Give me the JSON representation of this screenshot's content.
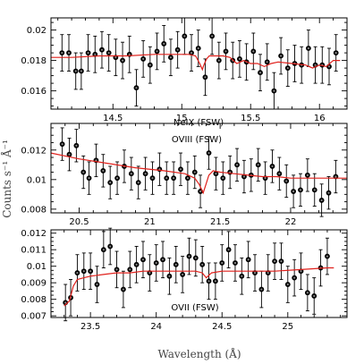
{
  "chart_data": [
    {
      "type": "scatter",
      "title": "",
      "annotation": "NeIX (FSW)",
      "xlim": [
        14.05,
        16.2
      ],
      "ylim": [
        0.0148,
        0.0208
      ],
      "xticks": [
        14.5,
        15,
        15.5,
        16
      ],
      "xtick_labels": [
        "14.5",
        "15",
        "15.5",
        "16"
      ],
      "yticks": [
        0.016,
        0.018,
        0.02
      ],
      "ytick_labels": [
        "0.016",
        "0.018",
        "0.02"
      ],
      "series": [
        {
          "kind": "data",
          "x": [
            14.13,
            14.18,
            14.23,
            14.27,
            14.32,
            14.37,
            14.42,
            14.47,
            14.52,
            14.57,
            14.62,
            14.67,
            14.72,
            14.77,
            14.82,
            14.87,
            14.92,
            14.97,
            15.02,
            15.07,
            15.12,
            15.17,
            15.22,
            15.27,
            15.32,
            15.37,
            15.42,
            15.47,
            15.52,
            15.57,
            15.62,
            15.67,
            15.72,
            15.77,
            15.82,
            15.87,
            15.92,
            15.97,
            16.02,
            16.07,
            16.12
          ],
          "y": [
            0.0185,
            0.0185,
            0.0173,
            0.0173,
            0.0185,
            0.0184,
            0.0187,
            0.0185,
            0.0182,
            0.018,
            0.0184,
            0.0162,
            0.0181,
            0.0177,
            0.0186,
            0.0191,
            0.0182,
            0.0187,
            0.0196,
            0.0185,
            0.0188,
            0.0169,
            0.0196,
            0.018,
            0.0186,
            0.018,
            0.0181,
            0.0179,
            0.0186,
            0.0172,
            0.0179,
            0.016,
            0.0183,
            0.0175,
            0.0178,
            0.0177,
            0.0188,
            0.0177,
            0.0177,
            0.0176,
            0.0185
          ],
          "err": [
            0.0012,
            0.0012,
            0.0012,
            0.0012,
            0.0012,
            0.0012,
            0.0012,
            0.0012,
            0.0012,
            0.0012,
            0.0012,
            0.0012,
            0.0012,
            0.0012,
            0.0012,
            0.0012,
            0.0012,
            0.0012,
            0.0012,
            0.0012,
            0.0012,
            0.0012,
            0.0012,
            0.0012,
            0.0012,
            0.0012,
            0.0012,
            0.0012,
            0.0012,
            0.0012,
            0.0012,
            0.0012,
            0.0012,
            0.0012,
            0.0012,
            0.0012,
            0.0012,
            0.0012,
            0.0012,
            0.0012,
            0.0012
          ]
        },
        {
          "kind": "model",
          "color": "#e0201b",
          "x": [
            14.05,
            14.2,
            14.4,
            14.6,
            14.8,
            15.0,
            15.05,
            15.1,
            15.13,
            15.15,
            15.16,
            15.18,
            15.2,
            15.25,
            15.3,
            15.35,
            15.4,
            15.45,
            15.5,
            15.55,
            15.6,
            15.65,
            15.7,
            15.8,
            15.9,
            15.95,
            16.0,
            16.05,
            16.1,
            16.15
          ],
          "y": [
            0.0182,
            0.0182,
            0.0183,
            0.0183,
            0.0184,
            0.0184,
            0.0184,
            0.0183,
            0.0178,
            0.0174,
            0.0177,
            0.0181,
            0.0183,
            0.0183,
            0.0183,
            0.0182,
            0.0178,
            0.018,
            0.0178,
            0.0178,
            0.0176,
            0.0178,
            0.0179,
            0.0178,
            0.0177,
            0.0175,
            0.0177,
            0.0176,
            0.018,
            0.018
          ]
        }
      ]
    },
    {
      "type": "scatter",
      "title": "",
      "annotation": "OVIII (FSW)",
      "xlim": [
        20.3,
        22.4
      ],
      "ylim": [
        0.00775,
        0.0138
      ],
      "xticks": [
        20.5,
        21,
        21.5,
        22
      ],
      "xtick_labels": [
        "20.5",
        "21",
        "21.5",
        "22"
      ],
      "yticks": [
        0.008,
        0.01,
        0.012
      ],
      "ytick_labels": [
        "0.008",
        "0.01",
        "0.012"
      ],
      "series": [
        {
          "kind": "data",
          "x": [
            20.38,
            20.43,
            20.48,
            20.53,
            20.57,
            20.62,
            20.67,
            20.72,
            20.77,
            20.82,
            20.87,
            20.92,
            20.97,
            21.02,
            21.07,
            21.12,
            21.17,
            21.22,
            21.27,
            21.32,
            21.36,
            21.42,
            21.47,
            21.52,
            21.57,
            21.62,
            21.67,
            21.72,
            21.77,
            21.82,
            21.87,
            21.92,
            21.97,
            22.02,
            22.07,
            22.12,
            22.17,
            22.22,
            22.27,
            22.32
          ],
          "y": [
            0.0124,
            0.0117,
            0.0123,
            0.0105,
            0.0101,
            0.0113,
            0.0106,
            0.0098,
            0.0101,
            0.0109,
            0.0104,
            0.0098,
            0.0104,
            0.0101,
            0.0107,
            0.0101,
            0.0101,
            0.0107,
            0.0101,
            0.0105,
            0.0092,
            0.0118,
            0.0104,
            0.0101,
            0.0105,
            0.011,
            0.0102,
            0.0103,
            0.011,
            0.0101,
            0.0109,
            0.0104,
            0.0099,
            0.0092,
            0.0093,
            0.0103,
            0.0093,
            0.0086,
            0.0091,
            0.0102
          ],
          "err": [
            0.0011,
            0.0011,
            0.0011,
            0.0011,
            0.0011,
            0.0011,
            0.0011,
            0.0011,
            0.0011,
            0.0011,
            0.0011,
            0.0011,
            0.0011,
            0.0011,
            0.0011,
            0.0011,
            0.0011,
            0.0011,
            0.0011,
            0.0011,
            0.0011,
            0.0011,
            0.0011,
            0.0011,
            0.0011,
            0.0011,
            0.0011,
            0.0011,
            0.0011,
            0.0011,
            0.0011,
            0.0011,
            0.0011,
            0.0011,
            0.0011,
            0.0011,
            0.0011,
            0.0011,
            0.0011,
            0.0011
          ]
        },
        {
          "kind": "model",
          "color": "#e0201b",
          "x": [
            20.3,
            20.5,
            20.7,
            20.9,
            21.1,
            21.25,
            21.32,
            21.35,
            21.37,
            21.38,
            21.4,
            21.42,
            21.45,
            21.5,
            21.6,
            21.7,
            21.8,
            21.9,
            22.0,
            22.2,
            22.4
          ],
          "y": [
            0.0118,
            0.0114,
            0.0111,
            0.0108,
            0.0106,
            0.0104,
            0.0101,
            0.0097,
            0.0093,
            0.0091,
            0.0097,
            0.0103,
            0.0106,
            0.0105,
            0.0104,
            0.0103,
            0.0102,
            0.0102,
            0.0101,
            0.0101,
            0.0101
          ]
        }
      ]
    },
    {
      "type": "scatter",
      "title": "",
      "annotation": "OVII (FSW)",
      "xlim": [
        23.2,
        25.45
      ],
      "ylim": [
        0.0069,
        0.0122
      ],
      "xticks": [
        23.5,
        24,
        24.5,
        25
      ],
      "xtick_labels": [
        "23.5",
        "24",
        "24.5",
        "25"
      ],
      "yticks": [
        0.007,
        0.008,
        0.009,
        0.01,
        0.011,
        0.012
      ],
      "ytick_labels": [
        "0.007",
        "0.008",
        "0.009",
        "0.01",
        "0.011",
        "0.012"
      ],
      "series": [
        {
          "kind": "data",
          "x": [
            23.31,
            23.35,
            23.4,
            23.45,
            23.5,
            23.55,
            23.6,
            23.65,
            23.7,
            23.75,
            23.8,
            23.85,
            23.9,
            23.95,
            24.0,
            24.05,
            24.1,
            24.15,
            24.2,
            24.25,
            24.3,
            24.35,
            24.4,
            24.45,
            24.5,
            24.55,
            24.6,
            24.65,
            24.7,
            24.75,
            24.8,
            24.85,
            24.9,
            24.95,
            25.0,
            25.05,
            25.1,
            25.15,
            25.2,
            25.25,
            25.3
          ],
          "y": [
            0.0078,
            0.0081,
            0.0096,
            0.0097,
            0.0097,
            0.0089,
            0.011,
            0.0112,
            0.0098,
            0.0086,
            0.0098,
            0.0101,
            0.0104,
            0.0096,
            0.0102,
            0.0104,
            0.0094,
            0.0101,
            0.0095,
            0.0106,
            0.0105,
            0.0101,
            0.0091,
            0.0091,
            0.0102,
            0.011,
            0.0102,
            0.0094,
            0.0104,
            0.0096,
            0.0086,
            0.0096,
            0.0103,
            0.0103,
            0.0089,
            0.0093,
            0.0097,
            0.0084,
            0.0082,
            0.0099,
            0.0106
          ],
          "err": [
            0.0011,
            0.0011,
            0.0011,
            0.0011,
            0.0011,
            0.0011,
            0.0011,
            0.0011,
            0.0011,
            0.0011,
            0.0011,
            0.0011,
            0.0011,
            0.0011,
            0.0011,
            0.0011,
            0.0011,
            0.0011,
            0.0011,
            0.0011,
            0.0011,
            0.0011,
            0.0011,
            0.0011,
            0.0011,
            0.0011,
            0.0011,
            0.0011,
            0.0011,
            0.0011,
            0.0011,
            0.0011,
            0.0011,
            0.0011,
            0.0011,
            0.0011,
            0.0011,
            0.0011,
            0.0011,
            0.0011,
            0.0011
          ]
        },
        {
          "kind": "model",
          "color": "#e0201b",
          "x": [
            23.3,
            23.34,
            23.37,
            23.4,
            23.45,
            23.5,
            23.6,
            23.7,
            23.8,
            23.9,
            24.0,
            24.2,
            24.3,
            24.35,
            24.38,
            24.42,
            24.5,
            24.7,
            24.9,
            25.1,
            25.3,
            25.35
          ],
          "y": [
            0.0076,
            0.0079,
            0.0088,
            0.0092,
            0.0093,
            0.0094,
            0.0095,
            0.0096,
            0.0096,
            0.0097,
            0.0097,
            0.0097,
            0.0097,
            0.0096,
            0.0093,
            0.0096,
            0.0097,
            0.0097,
            0.0097,
            0.0098,
            0.0099,
            0.0099
          ]
        }
      ]
    }
  ],
  "axes": {
    "xlabel": "Wavelength (Å)",
    "ylabel": "Counts s⁻¹ Å⁻¹"
  }
}
